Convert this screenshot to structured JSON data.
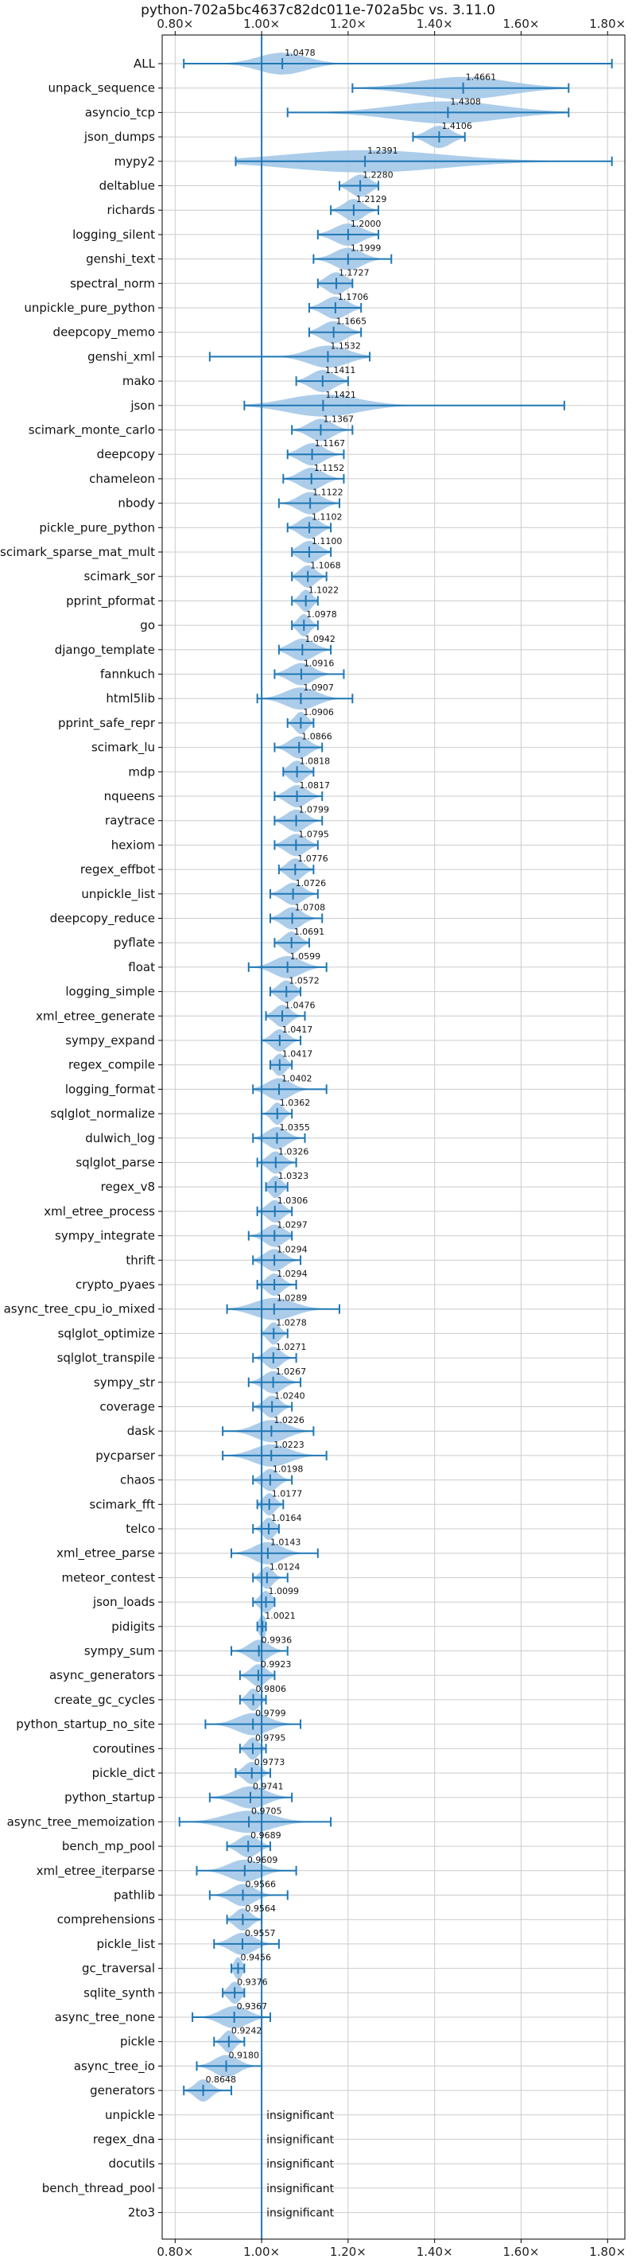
{
  "chart_data": {
    "type": "violin",
    "title": "python-702a5bc4637c82dc011e-702a5bc vs. 3.11.0",
    "xlim": [
      0.77,
      1.84
    ],
    "x_ticks": [
      0.8,
      1.0,
      1.2,
      1.4,
      1.6,
      1.8
    ],
    "x_tick_labels": [
      "0.80×",
      "1.00×",
      "1.20×",
      "1.40×",
      "1.60×",
      "1.80×"
    ],
    "reference_line": 1.0,
    "grid": true,
    "colors": {
      "violin": "#9ec4e6",
      "whisker": "#1f77b4",
      "reference": "#1f77b4",
      "grid": "#cccccc"
    },
    "insignificant_text": "insignificant",
    "benchmarks": [
      {
        "name": "ALL",
        "value": 1.0478,
        "label": "1.0478",
        "min": 0.82,
        "max": 1.81,
        "spread": 0.12
      },
      {
        "name": "unpack_sequence",
        "value": 1.4661,
        "label": "1.4661",
        "min": 1.21,
        "max": 1.71,
        "spread": 0.23
      },
      {
        "name": "asyncio_tcp",
        "value": 1.4308,
        "label": "1.4308",
        "min": 1.06,
        "max": 1.71,
        "spread": 0.27
      },
      {
        "name": "json_dumps",
        "value": 1.4106,
        "label": "1.4106",
        "min": 1.35,
        "max": 1.47,
        "spread": 0.06
      },
      {
        "name": "mypy2",
        "value": 1.2391,
        "label": "1.2391",
        "min": 0.94,
        "max": 1.81,
        "spread": 0.4
      },
      {
        "name": "deltablue",
        "value": 1.228,
        "label": "1.2280",
        "min": 1.18,
        "max": 1.27,
        "spread": 0.05
      },
      {
        "name": "richards",
        "value": 1.2129,
        "label": "1.2129",
        "min": 1.16,
        "max": 1.27,
        "spread": 0.05
      },
      {
        "name": "logging_silent",
        "value": 1.2,
        "label": "1.2000",
        "min": 1.13,
        "max": 1.27,
        "spread": 0.07
      },
      {
        "name": "genshi_text",
        "value": 1.1999,
        "label": "1.1999",
        "min": 1.12,
        "max": 1.3,
        "spread": 0.07
      },
      {
        "name": "spectral_norm",
        "value": 1.1727,
        "label": "1.1727",
        "min": 1.13,
        "max": 1.21,
        "spread": 0.05
      },
      {
        "name": "unpickle_pure_python",
        "value": 1.1706,
        "label": "1.1706",
        "min": 1.11,
        "max": 1.23,
        "spread": 0.06
      },
      {
        "name": "deepcopy_memo",
        "value": 1.1665,
        "label": "1.1665",
        "min": 1.11,
        "max": 1.23,
        "spread": 0.06
      },
      {
        "name": "genshi_xml",
        "value": 1.1532,
        "label": "1.1532",
        "min": 0.88,
        "max": 1.25,
        "spread": 0.1
      },
      {
        "name": "mako",
        "value": 1.1411,
        "label": "1.1411",
        "min": 1.08,
        "max": 1.2,
        "spread": 0.06
      },
      {
        "name": "json",
        "value": 1.1421,
        "label": "1.1421",
        "min": 0.96,
        "max": 1.7,
        "spread": 0.18
      },
      {
        "name": "scimark_monte_carlo",
        "value": 1.1367,
        "label": "1.1367",
        "min": 1.07,
        "max": 1.21,
        "spread": 0.06
      },
      {
        "name": "deepcopy",
        "value": 1.1167,
        "label": "1.1167",
        "min": 1.06,
        "max": 1.19,
        "spread": 0.06
      },
      {
        "name": "chameleon",
        "value": 1.1152,
        "label": "1.1152",
        "min": 1.05,
        "max": 1.19,
        "spread": 0.06
      },
      {
        "name": "nbody",
        "value": 1.1122,
        "label": "1.1122",
        "min": 1.04,
        "max": 1.18,
        "spread": 0.06
      },
      {
        "name": "pickle_pure_python",
        "value": 1.1102,
        "label": "1.1102",
        "min": 1.06,
        "max": 1.16,
        "spread": 0.05
      },
      {
        "name": "scimark_sparse_mat_mult",
        "value": 1.11,
        "label": "1.1100",
        "min": 1.07,
        "max": 1.16,
        "spread": 0.05
      },
      {
        "name": "scimark_sor",
        "value": 1.1068,
        "label": "1.1068",
        "min": 1.07,
        "max": 1.15,
        "spread": 0.04
      },
      {
        "name": "pprint_pformat",
        "value": 1.1022,
        "label": "1.1022",
        "min": 1.07,
        "max": 1.13,
        "spread": 0.03
      },
      {
        "name": "go",
        "value": 1.0978,
        "label": "1.0978",
        "min": 1.07,
        "max": 1.13,
        "spread": 0.03
      },
      {
        "name": "django_template",
        "value": 1.0942,
        "label": "1.0942",
        "min": 1.04,
        "max": 1.16,
        "spread": 0.06
      },
      {
        "name": "fannkuch",
        "value": 1.0916,
        "label": "1.0916",
        "min": 1.03,
        "max": 1.19,
        "spread": 0.06
      },
      {
        "name": "html5lib",
        "value": 1.0907,
        "label": "1.0907",
        "min": 0.99,
        "max": 1.21,
        "spread": 0.08
      },
      {
        "name": "pprint_safe_repr",
        "value": 1.0906,
        "label": "1.0906",
        "min": 1.06,
        "max": 1.12,
        "spread": 0.03
      },
      {
        "name": "scimark_lu",
        "value": 1.0866,
        "label": "1.0866",
        "min": 1.03,
        "max": 1.14,
        "spread": 0.05
      },
      {
        "name": "mdp",
        "value": 1.0818,
        "label": "1.0818",
        "min": 1.05,
        "max": 1.12,
        "spread": 0.04
      },
      {
        "name": "nqueens",
        "value": 1.0817,
        "label": "1.0817",
        "min": 1.03,
        "max": 1.14,
        "spread": 0.05
      },
      {
        "name": "raytrace",
        "value": 1.0799,
        "label": "1.0799",
        "min": 1.03,
        "max": 1.14,
        "spread": 0.05
      },
      {
        "name": "hexiom",
        "value": 1.0795,
        "label": "1.0795",
        "min": 1.03,
        "max": 1.13,
        "spread": 0.05
      },
      {
        "name": "regex_effbot",
        "value": 1.0776,
        "label": "1.0776",
        "min": 1.04,
        "max": 1.12,
        "spread": 0.04
      },
      {
        "name": "unpickle_list",
        "value": 1.0726,
        "label": "1.0726",
        "min": 1.02,
        "max": 1.13,
        "spread": 0.05
      },
      {
        "name": "deepcopy_reduce",
        "value": 1.0708,
        "label": "1.0708",
        "min": 1.02,
        "max": 1.14,
        "spread": 0.05
      },
      {
        "name": "pyflate",
        "value": 1.0691,
        "label": "1.0691",
        "min": 1.03,
        "max": 1.11,
        "spread": 0.04
      },
      {
        "name": "float",
        "value": 1.0599,
        "label": "1.0599",
        "min": 0.97,
        "max": 1.15,
        "spread": 0.07
      },
      {
        "name": "logging_simple",
        "value": 1.0572,
        "label": "1.0572",
        "min": 1.02,
        "max": 1.09,
        "spread": 0.04
      },
      {
        "name": "xml_etree_generate",
        "value": 1.0476,
        "label": "1.0476",
        "min": 1.01,
        "max": 1.1,
        "spread": 0.04
      },
      {
        "name": "sympy_expand",
        "value": 1.0417,
        "label": "1.0417",
        "min": 1.0,
        "max": 1.09,
        "spread": 0.04
      },
      {
        "name": "regex_compile",
        "value": 1.0417,
        "label": "1.0417",
        "min": 1.02,
        "max": 1.07,
        "spread": 0.03
      },
      {
        "name": "logging_format",
        "value": 1.0402,
        "label": "1.0402",
        "min": 0.98,
        "max": 1.15,
        "spread": 0.06
      },
      {
        "name": "sqlglot_normalize",
        "value": 1.0362,
        "label": "1.0362",
        "min": 1.0,
        "max": 1.07,
        "spread": 0.03
      },
      {
        "name": "dulwich_log",
        "value": 1.0355,
        "label": "1.0355",
        "min": 0.98,
        "max": 1.1,
        "spread": 0.05
      },
      {
        "name": "sqlglot_parse",
        "value": 1.0326,
        "label": "1.0326",
        "min": 0.99,
        "max": 1.08,
        "spread": 0.04
      },
      {
        "name": "regex_v8",
        "value": 1.0323,
        "label": "1.0323",
        "min": 1.01,
        "max": 1.06,
        "spread": 0.03
      },
      {
        "name": "xml_etree_process",
        "value": 1.0306,
        "label": "1.0306",
        "min": 0.99,
        "max": 1.07,
        "spread": 0.04
      },
      {
        "name": "sympy_integrate",
        "value": 1.0297,
        "label": "1.0297",
        "min": 0.97,
        "max": 1.07,
        "spread": 0.05
      },
      {
        "name": "thrift",
        "value": 1.0294,
        "label": "1.0294",
        "min": 0.98,
        "max": 1.09,
        "spread": 0.05
      },
      {
        "name": "crypto_pyaes",
        "value": 1.0294,
        "label": "1.0294",
        "min": 0.99,
        "max": 1.08,
        "spread": 0.04
      },
      {
        "name": "async_tree_cpu_io_mixed",
        "value": 1.0289,
        "label": "1.0289",
        "min": 0.92,
        "max": 1.18,
        "spread": 0.1
      },
      {
        "name": "sqlglot_optimize",
        "value": 1.0278,
        "label": "1.0278",
        "min": 1.0,
        "max": 1.06,
        "spread": 0.03
      },
      {
        "name": "sqlglot_transpile",
        "value": 1.0271,
        "label": "1.0271",
        "min": 0.98,
        "max": 1.08,
        "spread": 0.04
      },
      {
        "name": "sympy_str",
        "value": 1.0267,
        "label": "1.0267",
        "min": 0.97,
        "max": 1.09,
        "spread": 0.05
      },
      {
        "name": "coverage",
        "value": 1.024,
        "label": "1.0240",
        "min": 0.98,
        "max": 1.07,
        "spread": 0.04
      },
      {
        "name": "dask",
        "value": 1.0226,
        "label": "1.0226",
        "min": 0.91,
        "max": 1.12,
        "spread": 0.08
      },
      {
        "name": "pycparser",
        "value": 1.0223,
        "label": "1.0223",
        "min": 0.91,
        "max": 1.15,
        "spread": 0.09
      },
      {
        "name": "chaos",
        "value": 1.0198,
        "label": "1.0198",
        "min": 0.98,
        "max": 1.07,
        "spread": 0.04
      },
      {
        "name": "scimark_fft",
        "value": 1.0177,
        "label": "1.0177",
        "min": 0.99,
        "max": 1.05,
        "spread": 0.03
      },
      {
        "name": "telco",
        "value": 1.0164,
        "label": "1.0164",
        "min": 0.98,
        "max": 1.04,
        "spread": 0.03
      },
      {
        "name": "xml_etree_parse",
        "value": 1.0143,
        "label": "1.0143",
        "min": 0.93,
        "max": 1.13,
        "spread": 0.07
      },
      {
        "name": "meteor_contest",
        "value": 1.0124,
        "label": "1.0124",
        "min": 0.98,
        "max": 1.06,
        "spread": 0.03
      },
      {
        "name": "json_loads",
        "value": 1.0099,
        "label": "1.0099",
        "min": 0.98,
        "max": 1.03,
        "spread": 0.03
      },
      {
        "name": "pidigits",
        "value": 1.0021,
        "label": "1.0021",
        "min": 0.99,
        "max": 1.01,
        "spread": 0.02
      },
      {
        "name": "sympy_sum",
        "value": 0.9936,
        "label": "0.9936",
        "min": 0.93,
        "max": 1.06,
        "spread": 0.05
      },
      {
        "name": "async_generators",
        "value": 0.9923,
        "label": "0.9923",
        "min": 0.95,
        "max": 1.03,
        "spread": 0.04
      },
      {
        "name": "create_gc_cycles",
        "value": 0.9806,
        "label": "0.9806",
        "min": 0.95,
        "max": 1.01,
        "spread": 0.03
      },
      {
        "name": "python_startup_no_site",
        "value": 0.9799,
        "label": "0.9799",
        "min": 0.87,
        "max": 1.09,
        "spread": 0.08
      },
      {
        "name": "coroutines",
        "value": 0.9795,
        "label": "0.9795",
        "min": 0.95,
        "max": 1.01,
        "spread": 0.03
      },
      {
        "name": "pickle_dict",
        "value": 0.9773,
        "label": "0.9773",
        "min": 0.94,
        "max": 1.02,
        "spread": 0.04
      },
      {
        "name": "python_startup",
        "value": 0.9741,
        "label": "0.9741",
        "min": 0.88,
        "max": 1.07,
        "spread": 0.08
      },
      {
        "name": "async_tree_memoization",
        "value": 0.9705,
        "label": "0.9705",
        "min": 0.81,
        "max": 1.16,
        "spread": 0.12
      },
      {
        "name": "bench_mp_pool",
        "value": 0.9689,
        "label": "0.9689",
        "min": 0.92,
        "max": 1.02,
        "spread": 0.05
      },
      {
        "name": "xml_etree_iterparse",
        "value": 0.9609,
        "label": "0.9609",
        "min": 0.85,
        "max": 1.08,
        "spread": 0.08
      },
      {
        "name": "pathlib",
        "value": 0.9566,
        "label": "0.9566",
        "min": 0.88,
        "max": 1.06,
        "spread": 0.06
      },
      {
        "name": "comprehensions",
        "value": 0.9564,
        "label": "0.9564",
        "min": 0.92,
        "max": 1.0,
        "spread": 0.04
      },
      {
        "name": "pickle_list",
        "value": 0.9557,
        "label": "0.9557",
        "min": 0.89,
        "max": 1.04,
        "spread": 0.06
      },
      {
        "name": "gc_traversal",
        "value": 0.9456,
        "label": "0.9456",
        "min": 0.93,
        "max": 0.96,
        "spread": 0.02
      },
      {
        "name": "sqlite_synth",
        "value": 0.9376,
        "label": "0.9376",
        "min": 0.91,
        "max": 0.96,
        "spread": 0.03
      },
      {
        "name": "async_tree_none",
        "value": 0.9367,
        "label": "0.9367",
        "min": 0.84,
        "max": 1.02,
        "spread": 0.07
      },
      {
        "name": "pickle",
        "value": 0.9242,
        "label": "0.9242",
        "min": 0.89,
        "max": 0.96,
        "spread": 0.03
      },
      {
        "name": "async_tree_io",
        "value": 0.918,
        "label": "0.9180",
        "min": 0.85,
        "max": 1.0,
        "spread": 0.06
      },
      {
        "name": "generators",
        "value": 0.8648,
        "label": "0.8648",
        "min": 0.82,
        "max": 0.93,
        "spread": 0.04
      },
      {
        "name": "unpickle",
        "value": null,
        "label": "",
        "insignificant": true
      },
      {
        "name": "regex_dna",
        "value": null,
        "label": "",
        "insignificant": true
      },
      {
        "name": "docutils",
        "value": null,
        "label": "",
        "insignificant": true
      },
      {
        "name": "bench_thread_pool",
        "value": null,
        "label": "",
        "insignificant": true
      },
      {
        "name": "2to3",
        "value": null,
        "label": "",
        "insignificant": true
      }
    ]
  }
}
